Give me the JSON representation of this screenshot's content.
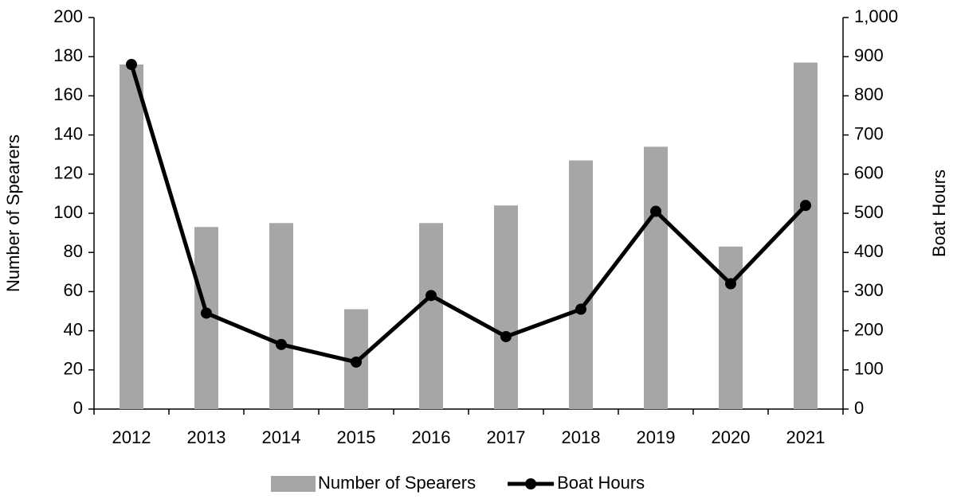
{
  "chart_data": {
    "type": "bar_line",
    "categories": [
      "2012",
      "2013",
      "2014",
      "2015",
      "2016",
      "2017",
      "2018",
      "2019",
      "2020",
      "2021"
    ],
    "ylabel": "Number of Spearers",
    "y2label": "Boat Hours",
    "ylim": [
      0,
      200
    ],
    "yticks": [
      0,
      20,
      40,
      60,
      80,
      100,
      120,
      140,
      160,
      180,
      200
    ],
    "y2lim": [
      0,
      1000
    ],
    "y2ticks": [
      0,
      100,
      200,
      300,
      400,
      500,
      600,
      700,
      800,
      900,
      {
        "value": 1000,
        "label": "1,000"
      }
    ],
    "legend": "bottom",
    "series": [
      {
        "name": "Number of Spearers",
        "type": "bar",
        "color": "#a6a6a6",
        "values": [
          176,
          93,
          95,
          51,
          95,
          104,
          127,
          134,
          83,
          177
        ]
      },
      {
        "name": "Boat Hours",
        "type": "line",
        "axis": "y2",
        "color": "#000000",
        "values": [
          880,
          245,
          165,
          120,
          290,
          185,
          255,
          505,
          320,
          520
        ]
      }
    ]
  }
}
